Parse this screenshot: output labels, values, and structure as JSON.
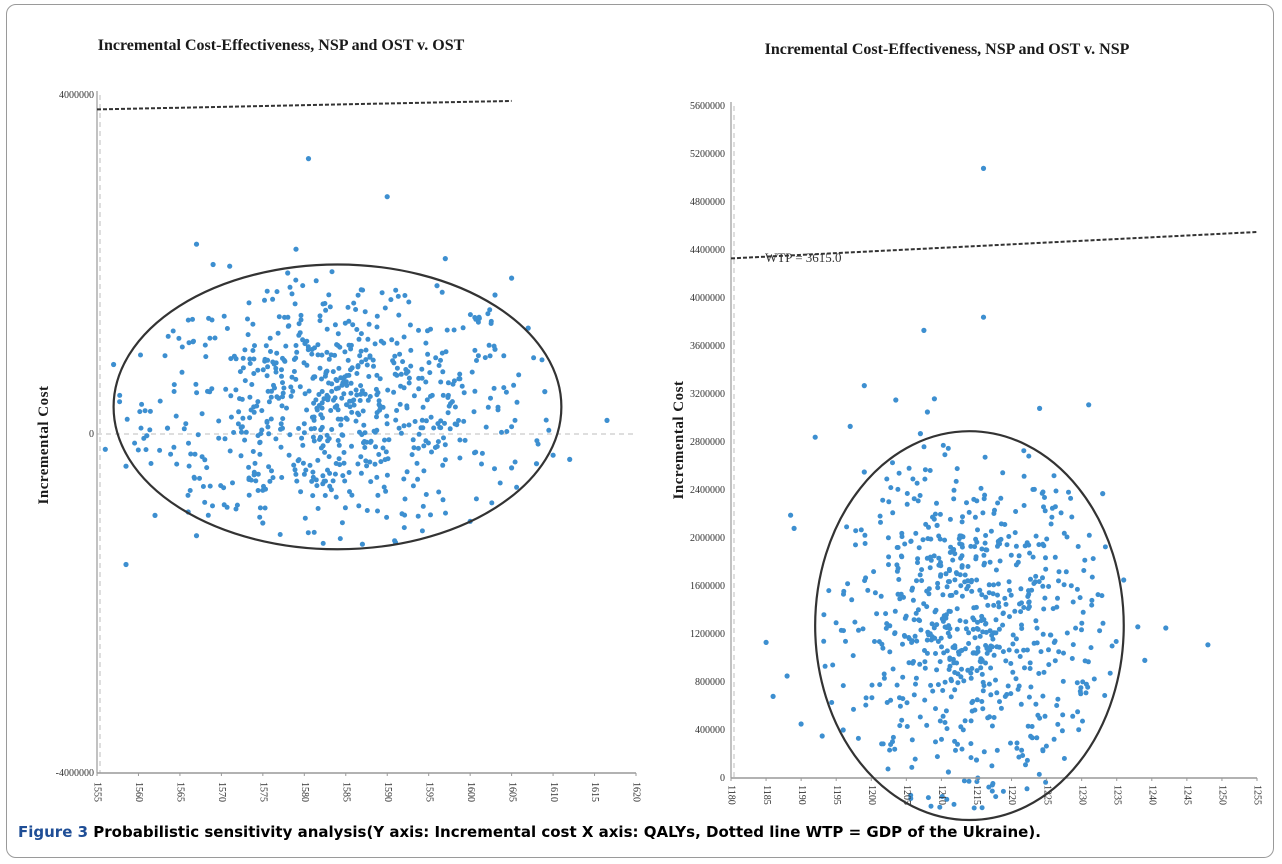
{
  "figure": {
    "caption_label": "Figure 3",
    "caption_text": "Probabilistic sensitivity analysis(Y axis: Incremental cost X axis: QALYs, Dotted line WTP = GDP of the Ukraine)."
  },
  "colors": {
    "points": "#3d8fd0",
    "ellipse": "#333333",
    "wtp": "#333333",
    "zero_line": "#bdbdbd",
    "axis": "#999999"
  },
  "chart_data": [
    {
      "type": "scatter",
      "title": "Incremental Cost-Effectiveness, NSP and OST v. OST",
      "ylabel": "Incremental Cost",
      "xlabel": "",
      "xlim": [
        1555,
        1620
      ],
      "ylim": [
        -4000000,
        4000000
      ],
      "x_ticks": [
        "1555",
        "1560",
        "1565",
        "1570",
        "1575",
        "1580",
        "1585",
        "1590",
        "1595",
        "1600",
        "1605",
        "1610",
        "1615",
        "1620"
      ],
      "y_ticks": [
        "4000000",
        "0",
        "-4000000"
      ],
      "wtp_line": {
        "x": [
          1555,
          1605
        ],
        "y": [
          3830000,
          3930000
        ],
        "label": ""
      },
      "confidence_ellipse": {
        "center": [
          1584,
          320000
        ],
        "semi_axis_x": 27,
        "semi_axis_y": 1680000
      },
      "series": [
        {
          "points": [
            [
              1580.5,
              3250000
            ],
            [
              1590,
              2800000
            ],
            [
              1567,
              2240000
            ],
            [
              1579,
              2180000
            ],
            [
              1597,
              2070000
            ],
            [
              1569,
              2000000
            ],
            [
              1571,
              1980000
            ],
            [
              1578,
              1900000
            ],
            [
              1605,
              1840000
            ],
            [
              1596,
              1750000
            ],
            [
              1603,
              1640000
            ],
            [
              1607,
              1250000
            ],
            [
              1557,
              820000
            ],
            [
              1609,
              500000
            ],
            [
              1616.5,
              160000
            ],
            [
              1556,
              -180000
            ],
            [
              1558.5,
              -380000
            ],
            [
              1608,
              -350000
            ],
            [
              1610,
              -250000
            ],
            [
              1612,
              -300000
            ],
            [
              1566,
              -920000
            ],
            [
              1567,
              -1200000
            ],
            [
              1562,
              -960000
            ],
            [
              1575,
              -1050000
            ],
            [
              1600,
              -1030000
            ],
            [
              1587,
              -1300000
            ],
            [
              1591,
              -1280000
            ],
            [
              1558.5,
              -1540000
            ],
            [
              1603,
              1000000
            ],
            [
              1561,
              -20000
            ],
            [
              1563.5,
              70000
            ],
            [
              1605,
              -400000
            ]
          ]
        }
      ]
    },
    {
      "type": "scatter",
      "title": "Incremental Cost-Effectiveness, NSP and OST v. NSP",
      "ylabel": "Incremental Cost",
      "xlabel": "",
      "xlim": [
        1180,
        1255
      ],
      "ylim": [
        0,
        5600000
      ],
      "x_ticks": [
        "1180",
        "1185",
        "1190",
        "1195",
        "1200",
        "1205",
        "1210",
        "1215",
        "1220",
        "1225",
        "1230",
        "1235",
        "1240",
        "1245",
        "1250",
        "1255"
      ],
      "y_ticks": [
        "5600000",
        "5200000",
        "4800000",
        "4400000",
        "4000000",
        "3600000",
        "3200000",
        "2800000",
        "2400000",
        "2000000",
        "1600000",
        "1200000",
        "800000",
        "400000",
        "0"
      ],
      "wtp_line": {
        "x": [
          1180,
          1255
        ],
        "y": [
          4330000,
          4550000
        ],
        "label": "WTP = 3615.0"
      },
      "confidence_ellipse": {
        "center": [
          1214,
          1270000
        ],
        "semi_axis_x": 22,
        "semi_axis_y": 1620000
      },
      "series": [
        {
          "points": [
            [
              1216,
              5080000
            ],
            [
              1216,
              3840000
            ],
            [
              1207.5,
              3730000
            ],
            [
              1199,
              3270000
            ],
            [
              1203.5,
              3150000
            ],
            [
              1209,
              3160000
            ],
            [
              1208,
              3050000
            ],
            [
              1197,
              2930000
            ],
            [
              1207,
              2870000
            ],
            [
              1224,
              3080000
            ],
            [
              1231,
              3110000
            ],
            [
              1192,
              2840000
            ],
            [
              1199,
              2550000
            ],
            [
              1188.5,
              2190000
            ],
            [
              1189,
              2080000
            ],
            [
              1185,
              1130000
            ],
            [
              1186,
              680000
            ],
            [
              1188,
              850000
            ],
            [
              1190,
              450000
            ],
            [
              1242,
              1250000
            ],
            [
              1248,
              1110000
            ],
            [
              1239,
              980000
            ],
            [
              1238,
              1260000
            ],
            [
              1233,
              2370000
            ],
            [
              1236,
              1650000
            ],
            [
              1211,
              50000
            ],
            [
              1215,
              150000
            ],
            [
              1193,
              350000
            ],
            [
              1196,
              400000
            ]
          ]
        }
      ]
    }
  ]
}
